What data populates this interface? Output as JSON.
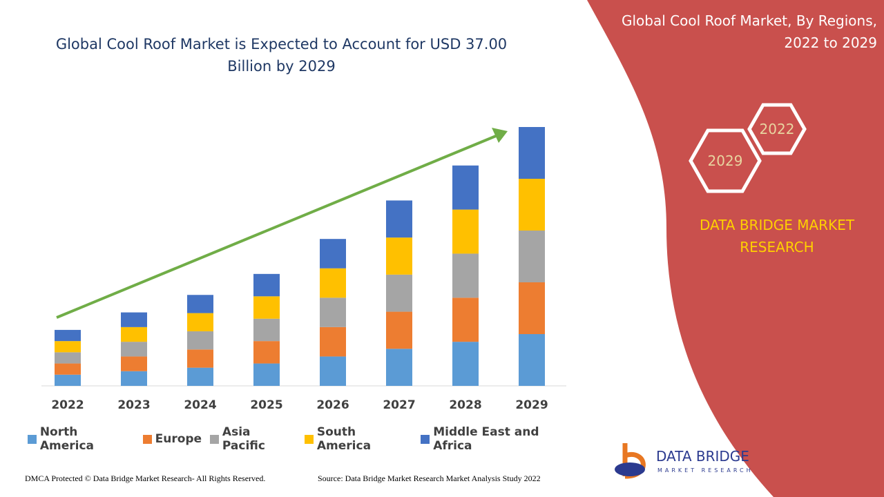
{
  "chart_data": {
    "type": "stacked-bar",
    "title": "Global Cool Roof Market is Expected to Account for USD 37.00 Billion by 2029",
    "categories": [
      "2022",
      "2023",
      "2024",
      "2025",
      "2026",
      "2027",
      "2028",
      "2029"
    ],
    "series": [
      {
        "name": "North America",
        "color": "#5b9bd5",
        "values": [
          1.6,
          2.1,
          2.6,
          3.2,
          4.2,
          5.3,
          6.3,
          7.4
        ]
      },
      {
        "name": "Europe",
        "color": "#ed7d31",
        "values": [
          1.6,
          2.1,
          2.6,
          3.2,
          4.2,
          5.3,
          6.3,
          7.4
        ]
      },
      {
        "name": "Asia Pacific",
        "color": "#a5a5a5",
        "values": [
          1.6,
          2.1,
          2.6,
          3.2,
          4.2,
          5.3,
          6.3,
          7.4
        ]
      },
      {
        "name": "South America",
        "color": "#ffc000",
        "values": [
          1.6,
          2.1,
          2.6,
          3.2,
          4.2,
          5.3,
          6.3,
          7.4
        ]
      },
      {
        "name": "Middle East and Africa",
        "color": "#4472c4",
        "values": [
          1.6,
          2.1,
          2.6,
          3.2,
          4.2,
          5.3,
          6.3,
          7.4
        ]
      }
    ]
  },
  "panel": {
    "title": "Global Cool Roof Market, By Regions, 2022 to 2029",
    "hexagons": [
      "2022",
      "2029"
    ],
    "brand": "DATA BRIDGE MARKET RESEARCH"
  },
  "logo": {
    "name": "DATA BRIDGE",
    "tagline": "MARKET RESEARCH"
  },
  "footer": {
    "left": "DMCA Protected © Data Bridge Market Research- All Rights Reserved.",
    "right": "Source: Data Bridge Market Research Market Analysis Study 2022"
  }
}
